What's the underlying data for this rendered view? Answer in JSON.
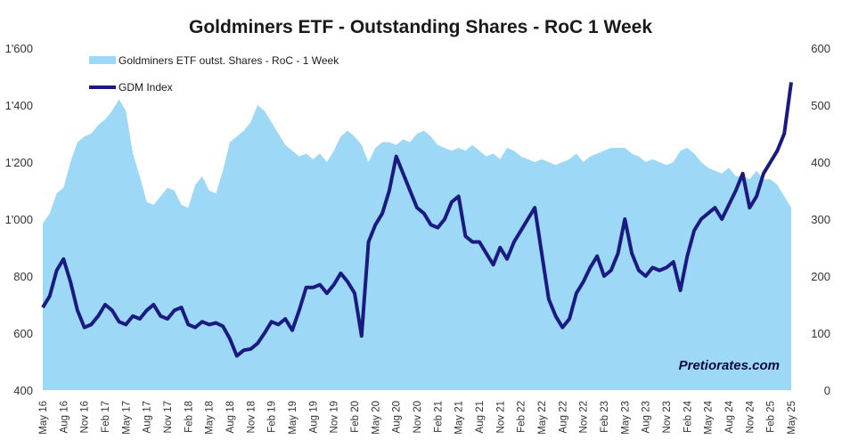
{
  "chart_data": {
    "type": "area",
    "title": "Goldminers ETF - Outstanding Shares - RoC 1 Week",
    "watermark": "Pretiorates.com",
    "grid": false,
    "legend_position": "top-left",
    "colors": {
      "area": "#9dd9f7",
      "line": "#1a1a80"
    },
    "y_left": {
      "min": 400,
      "max": 1600,
      "ticks": [
        "400",
        "600",
        "800",
        "1'000",
        "1'200",
        "1'400",
        "1'600"
      ]
    },
    "y_right": {
      "min": 0,
      "max": 600,
      "ticks": [
        "0",
        "100",
        "200",
        "300",
        "400",
        "500",
        "600"
      ]
    },
    "x_tick_labels": [
      "May 16",
      "Aug 16",
      "Nov 16",
      "Feb 17",
      "May 17",
      "Aug 17",
      "Nov 17",
      "Feb 18",
      "May 18",
      "Aug 18",
      "Nov 18",
      "Feb 19",
      "May 19",
      "Aug 19",
      "Nov 19",
      "Feb 20",
      "May 20",
      "Aug 20",
      "Nov 20",
      "Feb 21",
      "May 21",
      "Aug 21",
      "Nov 21",
      "Feb 22",
      "May 22",
      "Aug 22",
      "Nov 22",
      "Feb 23",
      "May 23",
      "Aug 23",
      "Nov 23",
      "Feb 24",
      "May 24",
      "Aug 24",
      "Nov 24",
      "Feb 25",
      "May 25"
    ],
    "series": [
      {
        "name": "Goldminers ETF outst. Shares - RoC - 1 Week",
        "axis": "left",
        "style": "area",
        "x": [
          "2016-05",
          "2016-06",
          "2016-07",
          "2016-08",
          "2016-09",
          "2016-10",
          "2016-11",
          "2016-12",
          "2017-01",
          "2017-02",
          "2017-03",
          "2017-04",
          "2017-05",
          "2017-06",
          "2017-07",
          "2017-08",
          "2017-09",
          "2017-10",
          "2017-11",
          "2017-12",
          "2018-01",
          "2018-02",
          "2018-03",
          "2018-04",
          "2018-05",
          "2018-06",
          "2018-07",
          "2018-08",
          "2018-09",
          "2018-10",
          "2018-11",
          "2018-12",
          "2019-01",
          "2019-02",
          "2019-03",
          "2019-04",
          "2019-05",
          "2019-06",
          "2019-07",
          "2019-08",
          "2019-09",
          "2019-10",
          "2019-11",
          "2019-12",
          "2020-01",
          "2020-02",
          "2020-03",
          "2020-04",
          "2020-05",
          "2020-06",
          "2020-07",
          "2020-08",
          "2020-09",
          "2020-10",
          "2020-11",
          "2020-12",
          "2021-01",
          "2021-02",
          "2021-03",
          "2021-04",
          "2021-05",
          "2021-06",
          "2021-07",
          "2021-08",
          "2021-09",
          "2021-10",
          "2021-11",
          "2021-12",
          "2022-01",
          "2022-02",
          "2022-03",
          "2022-04",
          "2022-05",
          "2022-06",
          "2022-07",
          "2022-08",
          "2022-09",
          "2022-10",
          "2022-11",
          "2022-12",
          "2023-01",
          "2023-02",
          "2023-03",
          "2023-04",
          "2023-05",
          "2023-06",
          "2023-07",
          "2023-08",
          "2023-09",
          "2023-10",
          "2023-11",
          "2023-12",
          "2024-01",
          "2024-02",
          "2024-03",
          "2024-04",
          "2024-05",
          "2024-06",
          "2024-07",
          "2024-08",
          "2024-09",
          "2024-10",
          "2024-11",
          "2024-12",
          "2025-01",
          "2025-02",
          "2025-03",
          "2025-04",
          "2025-05"
        ],
        "values": [
          985,
          1020,
          1090,
          1110,
          1200,
          1270,
          1290,
          1300,
          1330,
          1350,
          1380,
          1420,
          1380,
          1230,
          1150,
          1060,
          1050,
          1080,
          1110,
          1100,
          1050,
          1040,
          1120,
          1150,
          1100,
          1090,
          1170,
          1270,
          1290,
          1310,
          1340,
          1400,
          1380,
          1340,
          1300,
          1260,
          1240,
          1220,
          1230,
          1210,
          1230,
          1200,
          1240,
          1290,
          1310,
          1290,
          1260,
          1200,
          1250,
          1270,
          1270,
          1260,
          1280,
          1270,
          1300,
          1310,
          1290,
          1260,
          1250,
          1240,
          1250,
          1240,
          1260,
          1240,
          1220,
          1230,
          1210,
          1250,
          1240,
          1220,
          1210,
          1200,
          1210,
          1200,
          1190,
          1200,
          1210,
          1230,
          1200,
          1220,
          1230,
          1240,
          1250,
          1250,
          1250,
          1230,
          1220,
          1200,
          1210,
          1200,
          1190,
          1200,
          1240,
          1250,
          1230,
          1200,
          1180,
          1170,
          1160,
          1180,
          1150,
          1150,
          1140,
          1170,
          1140,
          1140,
          1120,
          1080,
          1040
        ]
      },
      {
        "name": "GDM Index",
        "axis": "right",
        "style": "line",
        "x": [
          "2016-05",
          "2016-06",
          "2016-07",
          "2016-08",
          "2016-09",
          "2016-10",
          "2016-11",
          "2016-12",
          "2017-01",
          "2017-02",
          "2017-03",
          "2017-04",
          "2017-05",
          "2017-06",
          "2017-07",
          "2017-08",
          "2017-09",
          "2017-10",
          "2017-11",
          "2017-12",
          "2018-01",
          "2018-02",
          "2018-03",
          "2018-04",
          "2018-05",
          "2018-06",
          "2018-07",
          "2018-08",
          "2018-09",
          "2018-10",
          "2018-11",
          "2018-12",
          "2019-01",
          "2019-02",
          "2019-03",
          "2019-04",
          "2019-05",
          "2019-06",
          "2019-07",
          "2019-08",
          "2019-09",
          "2019-10",
          "2019-11",
          "2019-12",
          "2020-01",
          "2020-02",
          "2020-03",
          "2020-04",
          "2020-05",
          "2020-06",
          "2020-07",
          "2020-08",
          "2020-09",
          "2020-10",
          "2020-11",
          "2020-12",
          "2021-01",
          "2021-02",
          "2021-03",
          "2021-04",
          "2021-05",
          "2021-06",
          "2021-07",
          "2021-08",
          "2021-09",
          "2021-10",
          "2021-11",
          "2021-12",
          "2022-01",
          "2022-02",
          "2022-03",
          "2022-04",
          "2022-05",
          "2022-06",
          "2022-07",
          "2022-08",
          "2022-09",
          "2022-10",
          "2022-11",
          "2022-12",
          "2023-01",
          "2023-02",
          "2023-03",
          "2023-04",
          "2023-05",
          "2023-06",
          "2023-07",
          "2023-08",
          "2023-09",
          "2023-10",
          "2023-11",
          "2023-12",
          "2024-01",
          "2024-02",
          "2024-03",
          "2024-04",
          "2024-05",
          "2024-06",
          "2024-07",
          "2024-08",
          "2024-09",
          "2024-10",
          "2024-11",
          "2024-12",
          "2025-01",
          "2025-02",
          "2025-03",
          "2025-04",
          "2025-05"
        ],
        "values": [
          145,
          165,
          210,
          230,
          190,
          140,
          110,
          115,
          130,
          150,
          140,
          120,
          115,
          130,
          125,
          140,
          150,
          130,
          125,
          140,
          145,
          115,
          110,
          120,
          115,
          118,
          112,
          90,
          60,
          70,
          72,
          82,
          100,
          120,
          115,
          125,
          105,
          140,
          180,
          180,
          185,
          170,
          185,
          205,
          190,
          170,
          95,
          260,
          290,
          310,
          350,
          410,
          380,
          350,
          320,
          310,
          290,
          285,
          300,
          330,
          340,
          270,
          260,
          260,
          240,
          220,
          250,
          230,
          260,
          280,
          300,
          320,
          240,
          160,
          130,
          110,
          125,
          170,
          190,
          215,
          235,
          200,
          210,
          240,
          300,
          240,
          210,
          200,
          215,
          210,
          215,
          225,
          175,
          235,
          280,
          300,
          310,
          320,
          300,
          325,
          350,
          380,
          320,
          340,
          380,
          400,
          420,
          450,
          540
        ]
      }
    ]
  }
}
